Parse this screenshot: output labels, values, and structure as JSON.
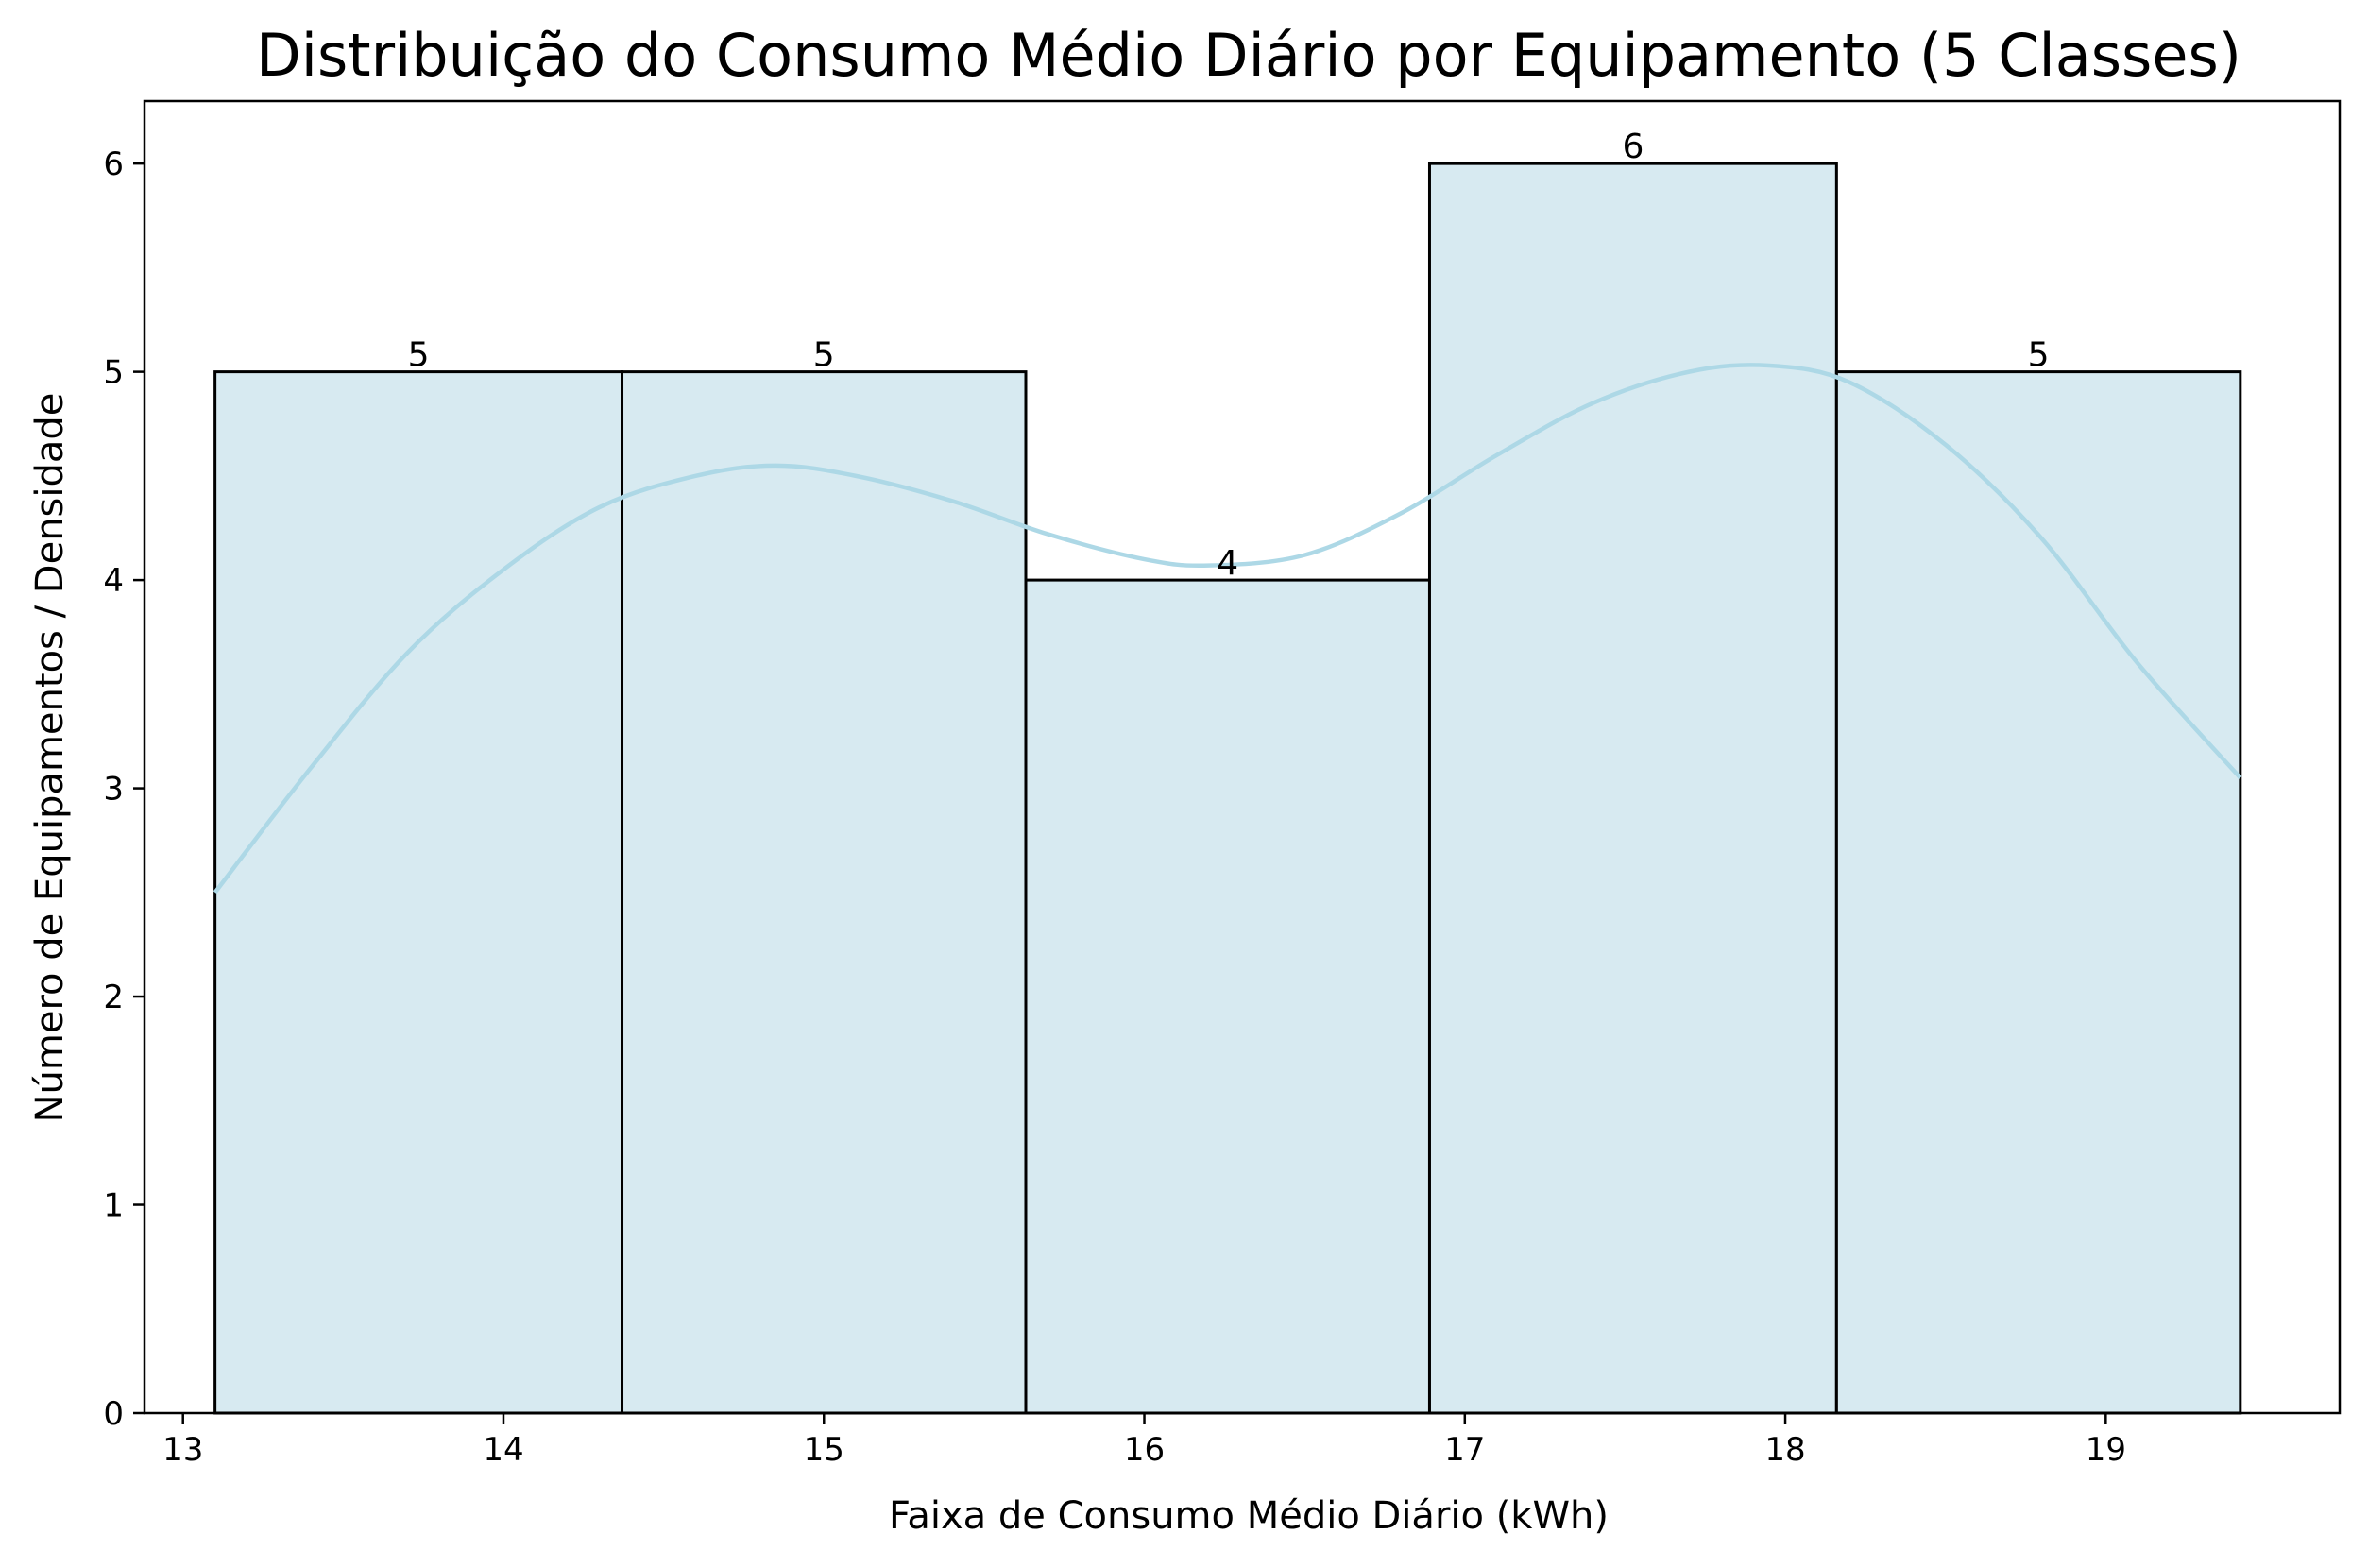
{
  "chart_data": {
    "type": "bar",
    "subtype": "histogram",
    "title": "Distribuição do Consumo Médio Diário por Equipamento (5 Classes)",
    "xlabel": "Faixa de Consumo Médio Diário (kWh)",
    "ylabel": "Número de Equipamentos / Densidade",
    "xlim": [
      12.88,
      19.73
    ],
    "ylim": [
      0,
      6.3
    ],
    "xticks": [
      13,
      14,
      15,
      16,
      17,
      18,
      19
    ],
    "yticks": [
      0,
      1,
      2,
      3,
      4,
      5,
      6
    ],
    "bins": [
      {
        "start": 13.1,
        "end": 14.37,
        "count": 5
      },
      {
        "start": 14.37,
        "end": 15.63,
        "count": 5
      },
      {
        "start": 15.63,
        "end": 16.89,
        "count": 4
      },
      {
        "start": 16.89,
        "end": 18.16,
        "count": 6
      },
      {
        "start": 18.16,
        "end": 19.42,
        "count": 5
      }
    ],
    "bar_labels": [
      "5",
      "5",
      "4",
      "6",
      "5"
    ],
    "kde": {
      "x": [
        13.1,
        13.4,
        13.7,
        14.0,
        14.3,
        14.6,
        14.85,
        15.1,
        15.4,
        15.7,
        16.0,
        16.2,
        16.5,
        16.8,
        17.1,
        17.4,
        17.7,
        17.95,
        18.2,
        18.5,
        18.8,
        19.1,
        19.42
      ],
      "y": [
        2.5,
        3.1,
        3.65,
        4.05,
        4.35,
        4.5,
        4.55,
        4.5,
        4.38,
        4.22,
        4.1,
        4.07,
        4.12,
        4.32,
        4.6,
        4.85,
        5.0,
        5.03,
        4.95,
        4.65,
        4.2,
        3.6,
        3.05
      ]
    },
    "colors": {
      "bar_fill": "#d7eaf1",
      "bar_edge": "#000000",
      "kde_line": "#add8e6"
    }
  }
}
